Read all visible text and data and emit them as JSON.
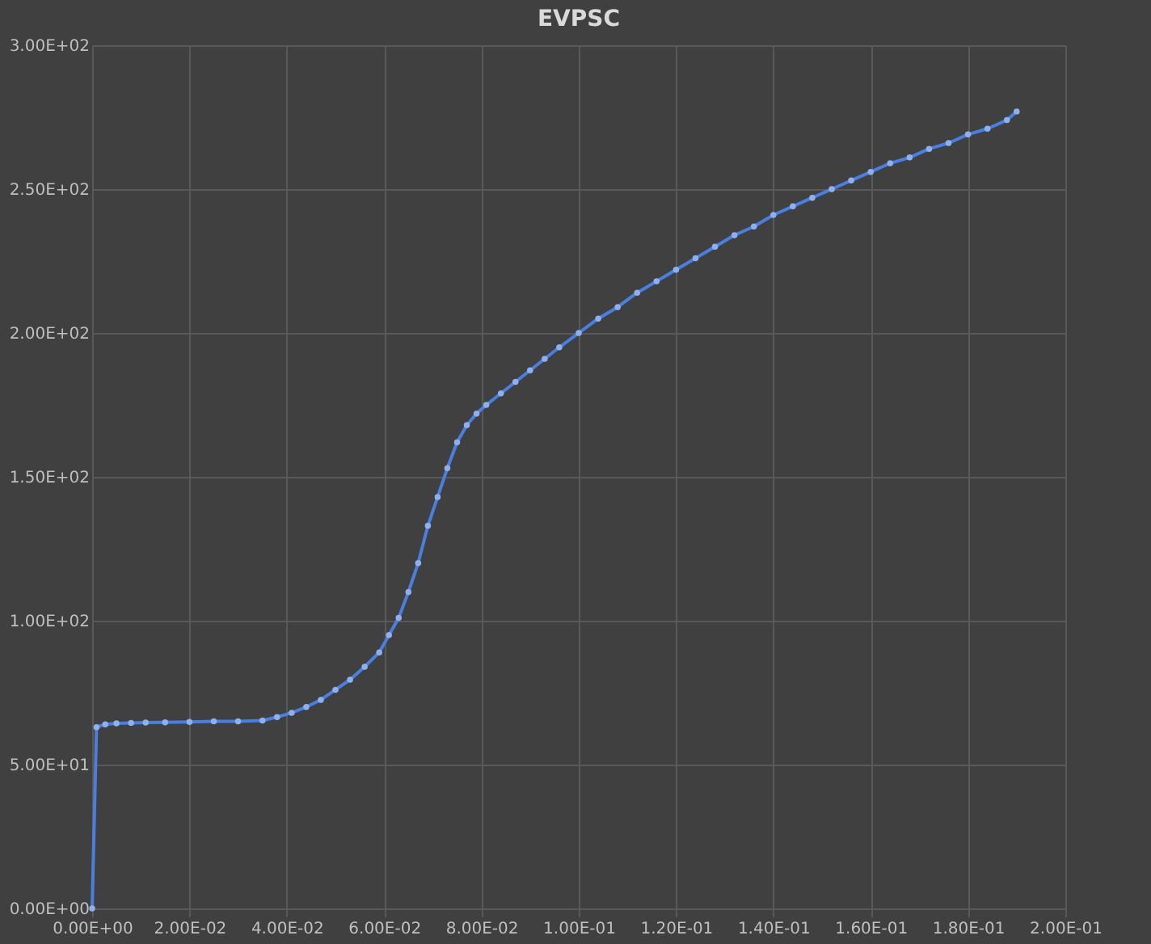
{
  "chart_data": {
    "type": "line",
    "title": "EVPSC",
    "x": [
      0,
      0.0009,
      0.0027,
      0.005,
      0.008,
      0.011,
      0.015,
      0.02,
      0.025,
      0.03,
      0.035,
      0.038,
      0.041,
      0.044,
      0.047,
      0.05,
      0.053,
      0.056,
      0.059,
      0.061,
      0.063,
      0.065,
      0.067,
      0.069,
      0.071,
      0.073,
      0.075,
      0.077,
      0.079,
      0.081,
      0.084,
      0.087,
      0.09,
      0.093,
      0.096,
      0.1,
      0.104,
      0.108,
      0.112,
      0.116,
      0.12,
      0.124,
      0.128,
      0.132,
      0.136,
      0.14,
      0.144,
      0.148,
      0.152,
      0.156,
      0.16,
      0.164,
      0.168,
      0.172,
      0.176,
      0.18,
      0.184,
      0.188,
      0.19
    ],
    "series": [
      {
        "color": "#4a7fe0",
        "values": [
          0,
          63,
          64,
          64.3,
          64.5,
          64.6,
          64.7,
          64.8,
          65,
          65,
          65.3,
          66.5,
          68,
          70,
          72.5,
          76,
          79.5,
          84,
          89,
          95,
          101,
          110,
          120,
          133,
          143,
          153,
          162,
          168,
          172,
          175,
          179,
          183,
          187,
          191,
          195,
          200,
          205,
          209,
          214,
          218,
          222,
          226,
          230,
          234,
          237,
          241,
          244,
          247,
          250,
          253,
          256,
          259,
          261,
          264,
          266,
          269,
          271,
          274,
          277
        ]
      }
    ],
    "xlim": [
      0,
      0.2
    ],
    "ylim": [
      0,
      300
    ],
    "xticks": [
      {
        "value": 0,
        "label": "0.00E+00"
      },
      {
        "value": 0.02,
        "label": "2.00E-02"
      },
      {
        "value": 0.04,
        "label": "4.00E-02"
      },
      {
        "value": 0.06,
        "label": "6.00E-02"
      },
      {
        "value": 0.08,
        "label": "8.00E-02"
      },
      {
        "value": 0.1,
        "label": "1.00E-01"
      },
      {
        "value": 0.12,
        "label": "1.20E-01"
      },
      {
        "value": 0.14,
        "label": "1.40E-01"
      },
      {
        "value": 0.16,
        "label": "1.60E-01"
      },
      {
        "value": 0.18,
        "label": "1.80E-01"
      },
      {
        "value": 0.2,
        "label": "2.00E-01"
      }
    ],
    "yticks": [
      {
        "value": 0,
        "label": "0.00E+00"
      },
      {
        "value": 50,
        "label": "5.00E+01"
      },
      {
        "value": 100,
        "label": "1.00E+02"
      },
      {
        "value": 150,
        "label": "1.50E+02"
      },
      {
        "value": 200,
        "label": "2.00E+02"
      },
      {
        "value": 250,
        "label": "2.50E+02"
      },
      {
        "value": 300,
        "label": "3.00E+02"
      }
    ],
    "grid": true,
    "marker": "circle",
    "line_style": "solid"
  }
}
